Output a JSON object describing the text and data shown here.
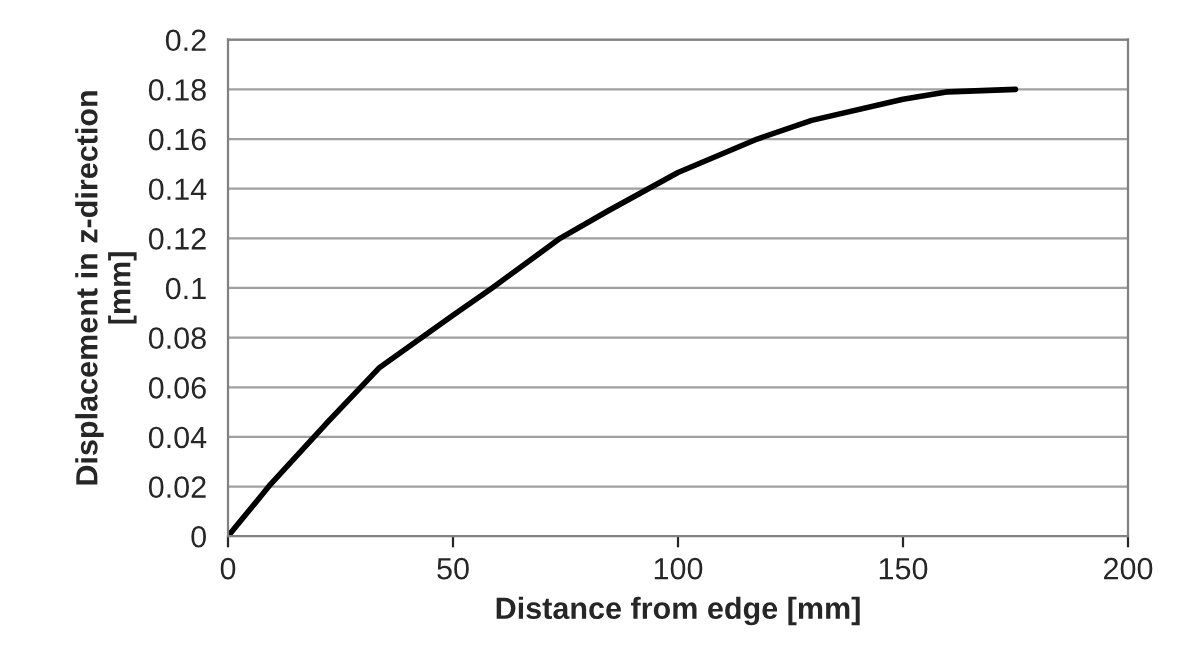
{
  "chart_data": {
    "type": "line",
    "xlabel": "Distance from edge [mm]",
    "ylabel": "Displacement in z-direction\n[mm]",
    "series": [
      {
        "color": "#000000",
        "x": [
          0,
          9.5,
          22.4,
          33.7,
          50,
          58.7,
          73.8,
          84.4,
          100,
          117.6,
          129.7,
          150,
          160,
          175
        ],
        "values": [
          0,
          0.021,
          0.0465,
          0.068,
          0.089,
          0.1,
          0.12,
          0.131,
          0.1465,
          0.16,
          0.1675,
          0.176,
          0.179,
          0.18
        ]
      }
    ],
    "xlim": [
      0,
      200
    ],
    "xticks": [
      0,
      50,
      100,
      150,
      200
    ],
    "ylim": [
      0,
      0.2
    ],
    "yticks": [
      0,
      0.02,
      0.04,
      0.06,
      0.08,
      0.1,
      0.12,
      0.14,
      0.16,
      0.18,
      0.2
    ],
    "grid": "y",
    "marker": "none",
    "line_style": "solid",
    "legend": false
  }
}
